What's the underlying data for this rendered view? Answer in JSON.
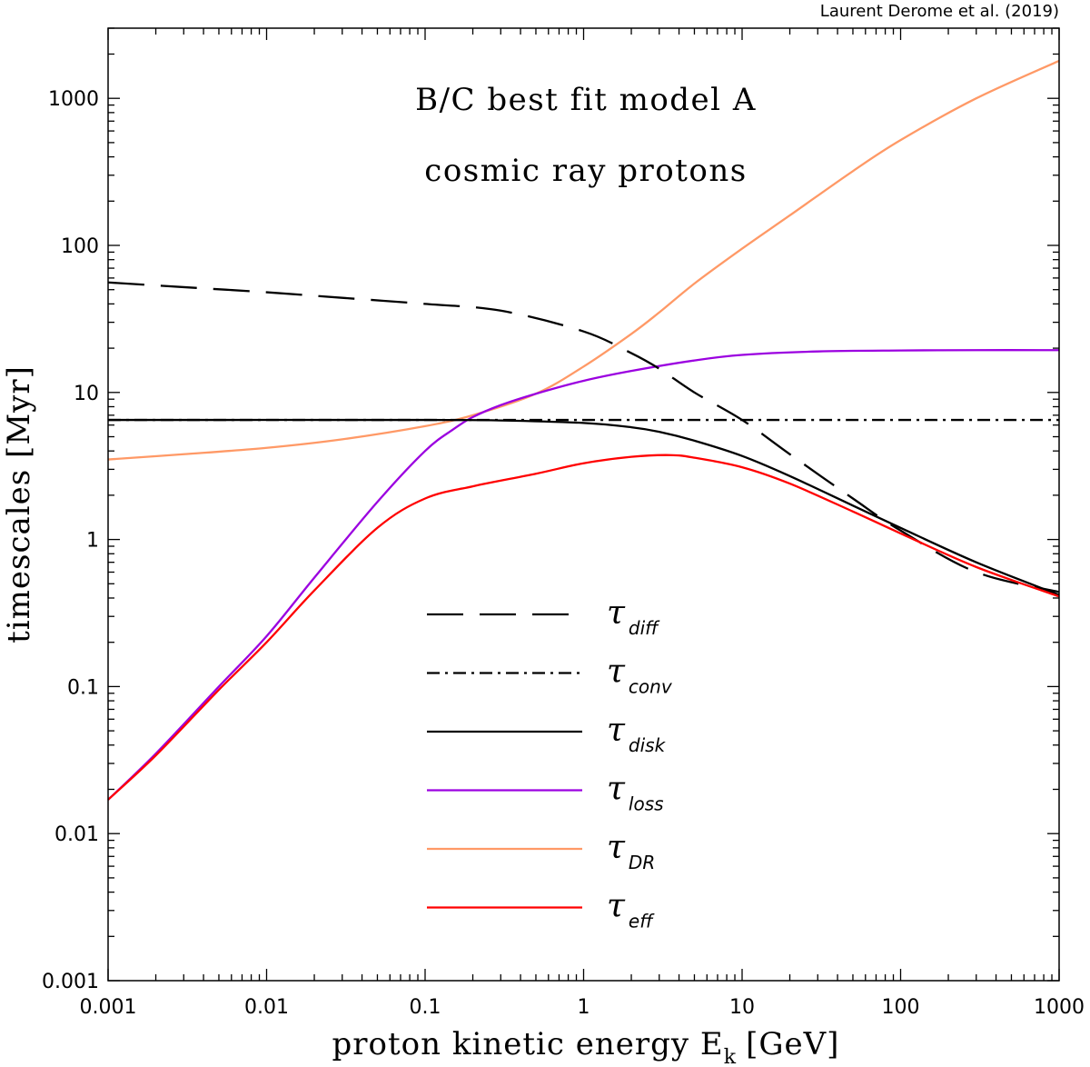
{
  "credit": "Laurent Derome et al. (2019)",
  "annotations": [
    "B/C best fit model A",
    "cosmic ray protons"
  ],
  "chart_data": {
    "type": "line",
    "xscale": "log",
    "yscale": "log",
    "xlabel": "proton kinetic energy E",
    "xlabel_sub": "k",
    "xlabel_unit": "[GeV]",
    "ylabel": "timescales [Myr]",
    "xlim": [
      0.001,
      1000
    ],
    "ylim": [
      0.001,
      3000
    ],
    "xticks": [
      0.001,
      0.01,
      0.1,
      1,
      10,
      100,
      1000
    ],
    "xtick_labels": [
      "0.001",
      "0.01",
      "0.1",
      "1",
      "10",
      "100",
      "1000"
    ],
    "yticks": [
      0.001,
      0.01,
      0.1,
      1,
      10,
      100,
      1000
    ],
    "ytick_labels": [
      "0.001",
      "0.01",
      "0.1",
      "1",
      "10",
      "100",
      "1000"
    ],
    "legend_position": "bottom-center",
    "series": [
      {
        "name": "diff",
        "legend_symbol": "τ",
        "legend_sub": "diff",
        "color": "#000000",
        "style": "dashed",
        "x": [
          0.001,
          0.003,
          0.01,
          0.03,
          0.1,
          0.3,
          1,
          2,
          3,
          5,
          10,
          20,
          50,
          100,
          300,
          1000
        ],
        "y": [
          56,
          52,
          48,
          44,
          40,
          36,
          26,
          18.5,
          14.5,
          10,
          6.5,
          3.8,
          1.9,
          1.15,
          0.6,
          0.44
        ]
      },
      {
        "name": "conv",
        "legend_symbol": "τ",
        "legend_sub": "conv",
        "color": "#000000",
        "style": "dashdot",
        "x": [
          0.001,
          1000
        ],
        "y": [
          6.5,
          6.5
        ]
      },
      {
        "name": "disk",
        "legend_symbol": "τ",
        "legend_sub": "disk",
        "color": "#000000",
        "style": "solid",
        "x": [
          0.001,
          0.1,
          0.3,
          1,
          2,
          3,
          5,
          10,
          20,
          50,
          100,
          300,
          1000
        ],
        "y": [
          6.5,
          6.5,
          6.45,
          6.2,
          5.8,
          5.4,
          4.7,
          3.7,
          2.7,
          1.7,
          1.2,
          0.7,
          0.42
        ]
      },
      {
        "name": "loss",
        "legend_symbol": "τ",
        "legend_sub": "loss",
        "color": "#9b00e0",
        "style": "solid",
        "x": [
          0.001,
          0.002,
          0.005,
          0.01,
          0.02,
          0.05,
          0.1,
          0.15,
          0.2,
          0.3,
          0.5,
          1,
          2,
          5,
          10,
          30,
          100,
          300,
          1000
        ],
        "y": [
          0.017,
          0.035,
          0.1,
          0.22,
          0.55,
          1.8,
          4.0,
          5.6,
          6.8,
          8.2,
          9.8,
          12,
          14,
          16.5,
          18,
          19,
          19.3,
          19.4,
          19.4
        ]
      },
      {
        "name": "DR",
        "legend_symbol": "τ",
        "legend_sub": "DR",
        "color": "#ff9966",
        "style": "solid",
        "x": [
          0.001,
          0.003,
          0.01,
          0.03,
          0.1,
          0.2,
          0.5,
          1,
          2,
          3,
          5,
          10,
          20,
          50,
          100,
          300,
          1000
        ],
        "y": [
          3.5,
          3.8,
          4.2,
          4.8,
          5.9,
          7.0,
          9.8,
          15,
          25,
          35,
          55,
          95,
          160,
          320,
          520,
          1000,
          1800
        ]
      },
      {
        "name": "eff",
        "legend_symbol": "τ",
        "legend_sub": "eff",
        "color": "#ff0000",
        "style": "solid",
        "x": [
          0.001,
          0.002,
          0.005,
          0.01,
          0.02,
          0.05,
          0.1,
          0.2,
          0.5,
          1,
          2,
          3.5,
          5,
          10,
          20,
          50,
          100,
          300,
          1000
        ],
        "y": [
          0.017,
          0.034,
          0.095,
          0.2,
          0.45,
          1.2,
          1.9,
          2.3,
          2.8,
          3.3,
          3.65,
          3.75,
          3.6,
          3.1,
          2.4,
          1.55,
          1.1,
          0.65,
          0.41
        ]
      }
    ]
  }
}
